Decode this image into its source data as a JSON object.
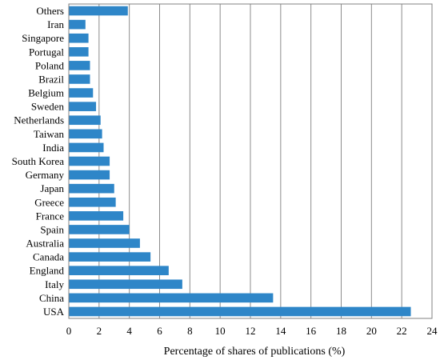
{
  "chart_data": {
    "type": "bar",
    "orientation": "horizontal",
    "categories": [
      "USA",
      "China",
      "Italy",
      "England",
      "Canada",
      "Australia",
      "Spain",
      "France",
      "Greece",
      "Japan",
      "Germany",
      "South Korea",
      "India",
      "Taiwan",
      "Netherlands",
      "Sweden",
      "Belgium",
      "Brazil",
      "Poland",
      "Portugal",
      "Singapore",
      "Iran",
      "Others"
    ],
    "values": [
      22.6,
      13.5,
      7.5,
      6.6,
      5.4,
      4.7,
      4.0,
      3.6,
      3.1,
      3.0,
      2.7,
      2.7,
      2.3,
      2.2,
      2.1,
      1.8,
      1.6,
      1.4,
      1.4,
      1.3,
      1.3,
      1.1,
      3.9
    ],
    "title": "",
    "xlabel": "Percentage  of  shares  of  publications   (%)",
    "ylabel": "",
    "xlim": [
      0,
      24
    ],
    "xticks": [
      0,
      2,
      4,
      6,
      8,
      10,
      12,
      14,
      16,
      18,
      20,
      22,
      24
    ],
    "grid": "vertical",
    "bar_color": "#2e86c8"
  }
}
